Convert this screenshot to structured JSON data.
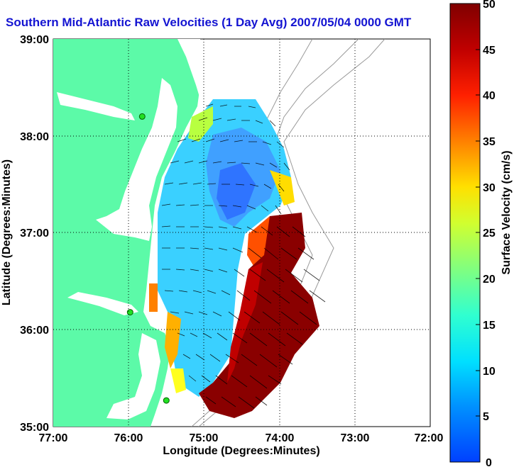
{
  "title": "Southern Mid-Atlantic Raw Velocities (1 Day Avg) 2007/05/04 0000 GMT",
  "map": {
    "xlabel": "Longitude (Degrees:Minutes)",
    "ylabel": "Latitude (Degrees:Minutes)",
    "x_ticks": [
      "77:00",
      "76:00",
      "75:00",
      "74:00",
      "73:00",
      "72:00"
    ],
    "y_ticks": [
      "39:00",
      "38:00",
      "37:00",
      "36:00",
      "35:00"
    ],
    "lon_range": [
      -77,
      -72
    ],
    "lat_range": [
      35,
      39
    ],
    "land_color": "#5cfaa8",
    "grid": "dotted"
  },
  "colorbar": {
    "label": "Surface Velocity (cm/s)",
    "ticks": [
      "50",
      "45",
      "40",
      "35",
      "30",
      "25",
      "20",
      "15",
      "10",
      "5",
      "0"
    ],
    "min": 0,
    "max": 50,
    "colormap": "jet"
  },
  "stations": [
    {
      "lon": -75.82,
      "lat": 38.2
    },
    {
      "lon": -75.98,
      "lat": 36.18
    },
    {
      "lon": -75.5,
      "lat": 35.27
    }
  ]
}
